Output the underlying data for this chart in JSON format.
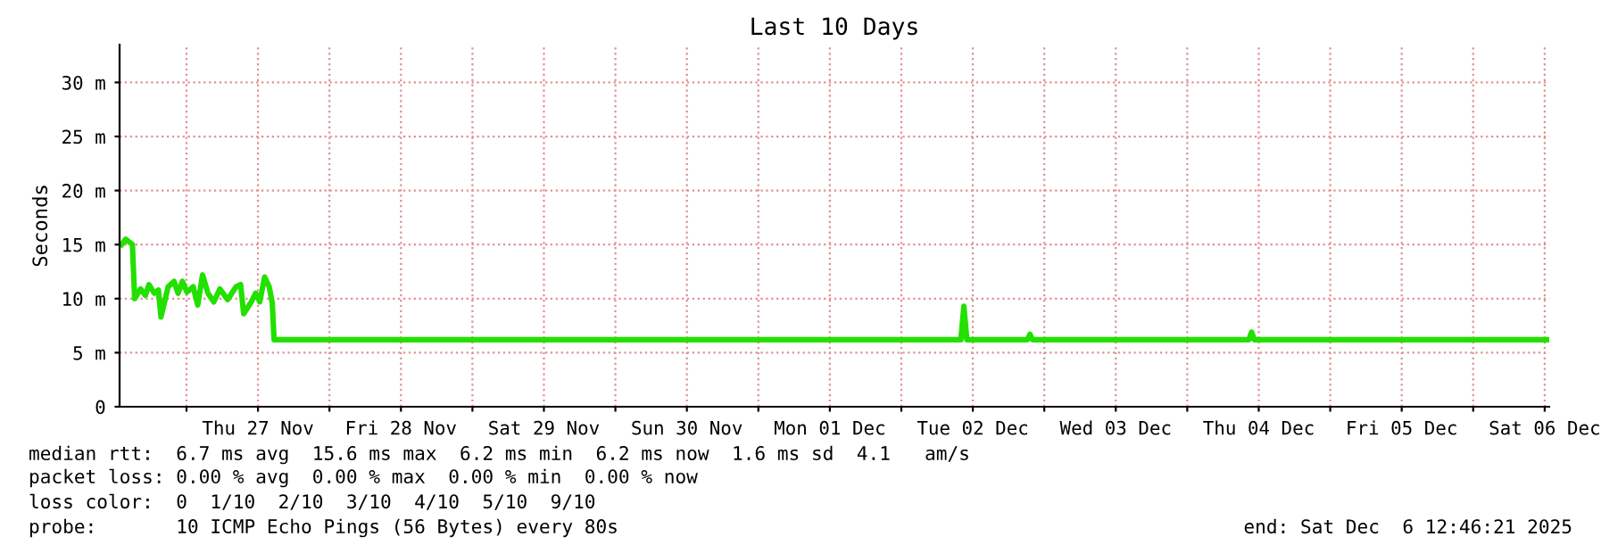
{
  "chart_data": {
    "type": "line",
    "title": "Last 10 Days",
    "ylabel": "Seconds",
    "x": [
      "2025-11-26T13:07",
      "2025-11-26T13:48",
      "2025-11-26T14:55",
      "2025-11-26T15:18",
      "2025-11-26T16:17",
      "2025-11-26T17:06",
      "2025-11-26T17:42",
      "2025-11-26T18:36",
      "2025-11-26T19:17",
      "2025-11-26T19:43",
      "2025-11-26T20:55",
      "2025-11-26T21:54",
      "2025-11-26T22:35",
      "2025-11-26T23:19",
      "2025-11-27T00:05",
      "2025-11-27T01:07",
      "2025-11-27T01:53",
      "2025-11-27T02:42",
      "2025-11-27T03:36",
      "2025-11-27T04:35",
      "2025-11-27T05:37",
      "2025-11-27T06:54",
      "2025-11-27T08:19",
      "2025-11-27T09:05",
      "2025-11-27T09:36",
      "2025-11-27T10:53",
      "2025-11-27T11:37",
      "2025-11-27T12:18",
      "2025-11-27T13:07",
      "2025-11-27T13:53",
      "2025-11-27T14:24",
      "2025-11-27T14:42",
      "2025-12-02T10:00",
      "2025-12-02T10:30",
      "2025-12-02T11:00",
      "2025-12-02T21:10",
      "2025-12-02T21:36",
      "2025-12-02T22:00",
      "2025-12-04T10:20",
      "2025-12-04T10:48",
      "2025-12-04T11:15",
      "2025-12-06T12:46"
    ],
    "series": [
      {
        "color": "#22e000",
        "values": [
          15.0,
          15.5,
          15.0,
          10.0,
          10.9,
          10.3,
          11.3,
          10.5,
          10.8,
          8.3,
          11.1,
          11.6,
          10.5,
          11.6,
          10.6,
          11.1,
          9.4,
          12.2,
          10.5,
          9.7,
          10.9,
          9.9,
          11.1,
          11.3,
          8.6,
          9.7,
          10.5,
          9.7,
          12.0,
          11.1,
          9.6,
          6.2,
          6.2,
          9.3,
          6.2,
          6.2,
          6.7,
          6.2,
          6.2,
          6.9,
          6.2,
          6.2
        ]
      }
    ],
    "xlim": [
      "2025-11-26T12:46",
      "2025-12-06T12:46"
    ],
    "xticks": [
      {
        "value": "2025-11-27T00:00",
        "label": null
      },
      {
        "value": "2025-11-27T12:00",
        "label": "Thu 27 Nov"
      },
      {
        "value": "2025-11-28T00:00",
        "label": null
      },
      {
        "value": "2025-11-28T12:00",
        "label": "Fri 28 Nov"
      },
      {
        "value": "2025-11-29T00:00",
        "label": null
      },
      {
        "value": "2025-11-29T12:00",
        "label": "Sat 29 Nov"
      },
      {
        "value": "2025-11-30T00:00",
        "label": null
      },
      {
        "value": "2025-11-30T12:00",
        "label": "Sun 30 Nov"
      },
      {
        "value": "2025-12-01T00:00",
        "label": null
      },
      {
        "value": "2025-12-01T12:00",
        "label": "Mon 01 Dec"
      },
      {
        "value": "2025-12-02T00:00",
        "label": null
      },
      {
        "value": "2025-12-02T12:00",
        "label": "Tue 02 Dec"
      },
      {
        "value": "2025-12-03T00:00",
        "label": null
      },
      {
        "value": "2025-12-03T12:00",
        "label": "Wed 03 Dec"
      },
      {
        "value": "2025-12-04T00:00",
        "label": null
      },
      {
        "value": "2025-12-04T12:00",
        "label": "Thu 04 Dec"
      },
      {
        "value": "2025-12-05T00:00",
        "label": null
      },
      {
        "value": "2025-12-05T12:00",
        "label": "Fri 05 Dec"
      },
      {
        "value": "2025-12-06T00:00",
        "label": null
      },
      {
        "value": "2025-12-06T12:00",
        "label": "Sat 06 Dec"
      }
    ],
    "ylim": [
      0,
      33.5
    ],
    "yticks": [
      {
        "value": 0,
        "label": "0"
      },
      {
        "value": 5,
        "label": "5 m"
      },
      {
        "value": 10,
        "label": "10 m"
      },
      {
        "value": 15,
        "label": "15 m"
      },
      {
        "value": 20,
        "label": "20 m"
      },
      {
        "value": 25,
        "label": "25 m"
      },
      {
        "value": 30,
        "label": "30 m"
      }
    ],
    "grid": true,
    "marker": "none",
    "line_style": "solid",
    "legend": false,
    "annotations": [
      "median rtt:  6.7 ms avg  15.6 ms max  6.2 ms min  6.2 ms now  1.6 ms sd  4.1   am/s",
      "packet loss: 0.00 % avg  0.00 % max  0.00 % min  0.00 % now",
      "loss color:  0  1/10  2/10  3/10  4/10  5/10  9/10",
      "probe:       10 ICMP Echo Pings (56 Bytes) every 80s",
      "end: Sat Dec  6 12:46:21 2025"
    ]
  }
}
